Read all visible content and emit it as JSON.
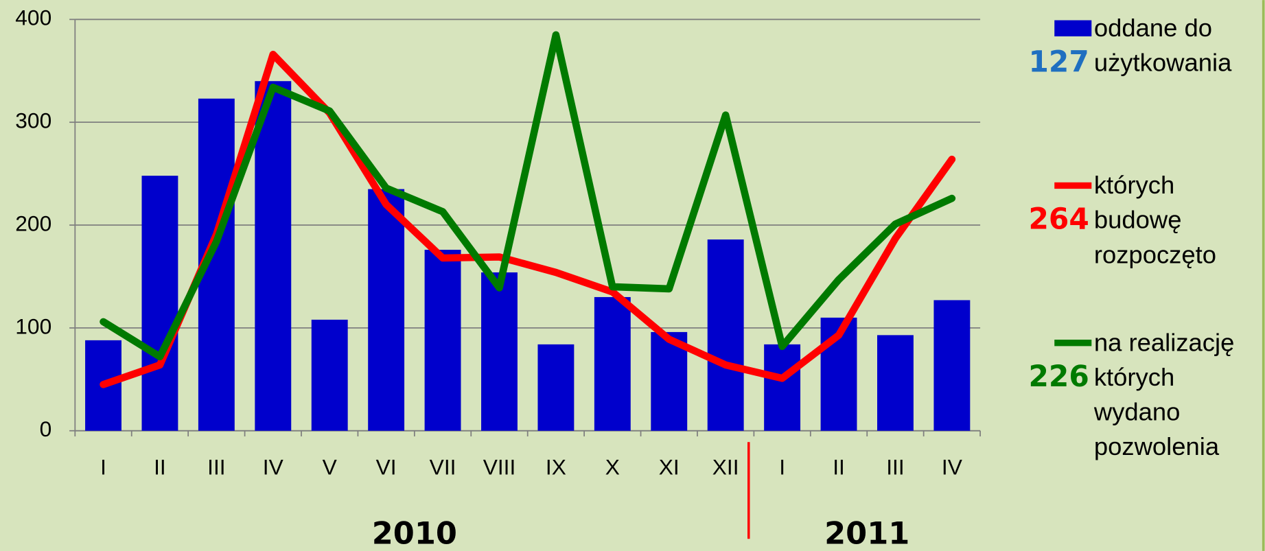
{
  "chart_data": {
    "type": "bar-line",
    "categories": [
      "I",
      "II",
      "III",
      "IV",
      "V",
      "VI",
      "VII",
      "VIII",
      "IX",
      "X",
      "XI",
      "XII",
      "I",
      "II",
      "III",
      "IV"
    ],
    "year_groups": [
      "2010",
      "2011"
    ],
    "series": [
      {
        "name": "oddane do użytkowania",
        "type": "bar",
        "color": "#0000cc",
        "values": [
          88,
          248,
          323,
          340,
          108,
          235,
          176,
          154,
          84,
          130,
          96,
          186,
          84,
          110,
          93,
          127
        ]
      },
      {
        "name": "których budowę rozpoczęto",
        "type": "line",
        "color": "#ff0000",
        "values": [
          45,
          64,
          191,
          366,
          309,
          220,
          168,
          169,
          154,
          135,
          89,
          64,
          51,
          93,
          187,
          264
        ]
      },
      {
        "name": "na realizację których wydano pozwolenia",
        "type": "line",
        "color": "#007a00",
        "values": [
          106,
          72,
          184,
          334,
          311,
          236,
          213,
          139,
          385,
          140,
          138,
          307,
          82,
          147,
          201,
          226
        ]
      }
    ],
    "ylim": [
      0,
      400
    ],
    "yticks": [
      0,
      100,
      200,
      300,
      400
    ],
    "grid": true
  }
}
